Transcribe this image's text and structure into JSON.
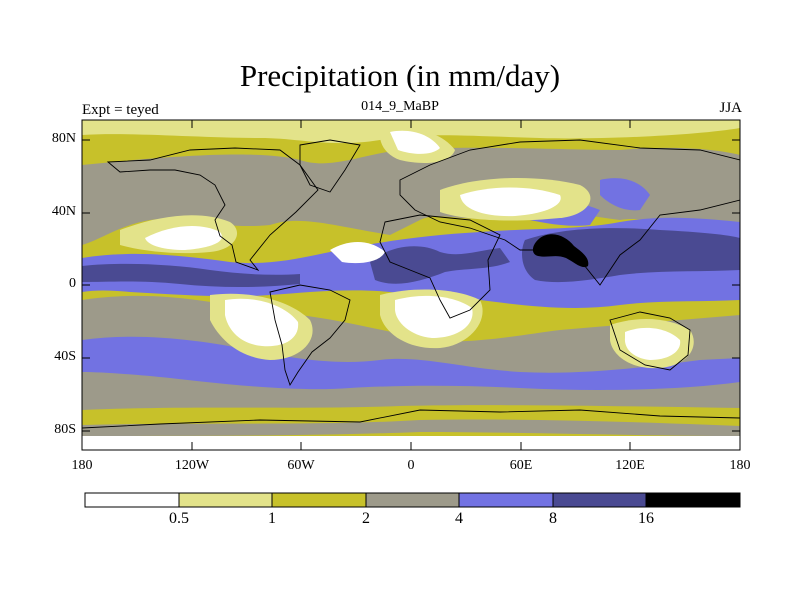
{
  "title": "Precipitation (in mm/day)",
  "left_label": "Expt = teyed",
  "center_label": "014_9_MaBP",
  "right_label": "JJA",
  "y_axis_labels": [
    "80N",
    "40N",
    "0",
    "40S",
    "80S"
  ],
  "x_axis_labels": [
    "180",
    "120W",
    "60W",
    "0",
    "60E",
    "120E",
    "180"
  ],
  "colorbar": {
    "levels": [
      "0.5",
      "1",
      "2",
      "4",
      "8",
      "16"
    ],
    "colors": [
      "#ffffff",
      "#e3e38a",
      "#c7c12a",
      "#9d9a8a",
      "#7272e2",
      "#4a4a92",
      "#000000"
    ]
  },
  "colors": {
    "dry": "#ffffff",
    "light": "#e3e38a",
    "olive": "#c7c12a",
    "gray": "#9d9a8a",
    "blue": "#7272e2",
    "navy": "#4a4a92",
    "black": "#000000"
  }
}
